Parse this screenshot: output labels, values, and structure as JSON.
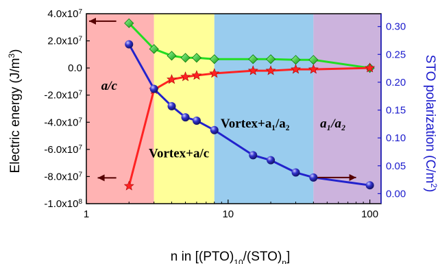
{
  "chart_data": {
    "type": "line",
    "xscale": "log",
    "xlim": [
      1,
      120
    ],
    "xticks": [
      1,
      10,
      100
    ],
    "xtick_labels": [
      "1",
      "10",
      "100"
    ],
    "xlabel_main": "n in [(PTO)",
    "xlabel_sub1": "10",
    "xlabel_mid": "/(STO)",
    "xlabel_sub2": "n",
    "xlabel_end": "]",
    "ylabel_left": "Electric energy (J/m",
    "ylabel_left_sup": "3",
    "ylabel_left_end": ")",
    "ylim_left": [
      -100000000,
      40000000
    ],
    "yticks_left": [
      -100000000,
      -80000000,
      -60000000,
      -40000000,
      -20000000,
      0,
      20000000,
      40000000
    ],
    "ytick_labels_left": [
      {
        "base": "-1.0x10",
        "exp": "8"
      },
      {
        "base": "-8.0x10",
        "exp": "7"
      },
      {
        "base": "-6.0x10",
        "exp": "7"
      },
      {
        "base": "-4.0x10",
        "exp": "7"
      },
      {
        "base": "-2.0x10",
        "exp": "7"
      },
      {
        "base": "0.0",
        "exp": ""
      },
      {
        "base": "2.0x10",
        "exp": "7"
      },
      {
        "base": "4.0x10",
        "exp": "7"
      }
    ],
    "ylabel_right": "STO polarization (C/m",
    "ylabel_right_sup": "2",
    "ylabel_right_end": ")",
    "ylim_right": [
      -0.018,
      0.323
    ],
    "yticks_right": [
      0.0,
      0.05,
      0.1,
      0.15,
      0.2,
      0.25,
      0.3
    ],
    "ytick_labels_right": [
      "0.00",
      "0.05",
      "0.10",
      "0.15",
      "0.20",
      "0.25",
      "0.30"
    ],
    "regions": [
      {
        "x0": 1,
        "x1": 3,
        "color": "#ffb3b3"
      },
      {
        "x0": 3,
        "x1": 8,
        "color": "#ffff99"
      },
      {
        "x0": 8,
        "x1": 40,
        "color": "#99ccee"
      },
      {
        "x0": 40,
        "x1": 120,
        "color": "#ccb3dd"
      }
    ],
    "region_labels": [
      {
        "text": "a/c"
      },
      {
        "text": "Vortex+a/c"
      },
      {
        "text": "Vortex+a₁/a₂"
      },
      {
        "text": "a₁/a₂"
      }
    ],
    "series": [
      {
        "axis": "left",
        "color": "#22dd22",
        "marker": "diamond",
        "x": [
          2,
          3,
          4,
          5,
          6,
          8,
          15,
          20,
          30,
          40,
          100
        ],
        "values": [
          33000000,
          14000000,
          9000000,
          7500000,
          7500000,
          6500000,
          6500000,
          6500000,
          6000000,
          6000000,
          0
        ]
      },
      {
        "axis": "left",
        "color": "#ff2222",
        "marker": "star",
        "x": [
          2,
          3,
          4,
          5,
          6,
          8,
          15,
          20,
          30,
          40,
          100
        ],
        "values": [
          -87000000,
          -16000000,
          -8500000,
          -6500000,
          -5500000,
          -4000000,
          -2000000,
          -2000000,
          -1000000,
          -1000000,
          0
        ]
      },
      {
        "axis": "right",
        "color": "#2222cc",
        "marker": "sphere",
        "x": [
          2,
          3,
          4,
          5,
          6,
          8,
          15,
          20,
          30,
          40,
          100
        ],
        "values": [
          0.268,
          0.188,
          0.157,
          0.137,
          0.131,
          0.114,
          0.069,
          0.06,
          0.038,
          0.029,
          0.015
        ]
      }
    ]
  }
}
